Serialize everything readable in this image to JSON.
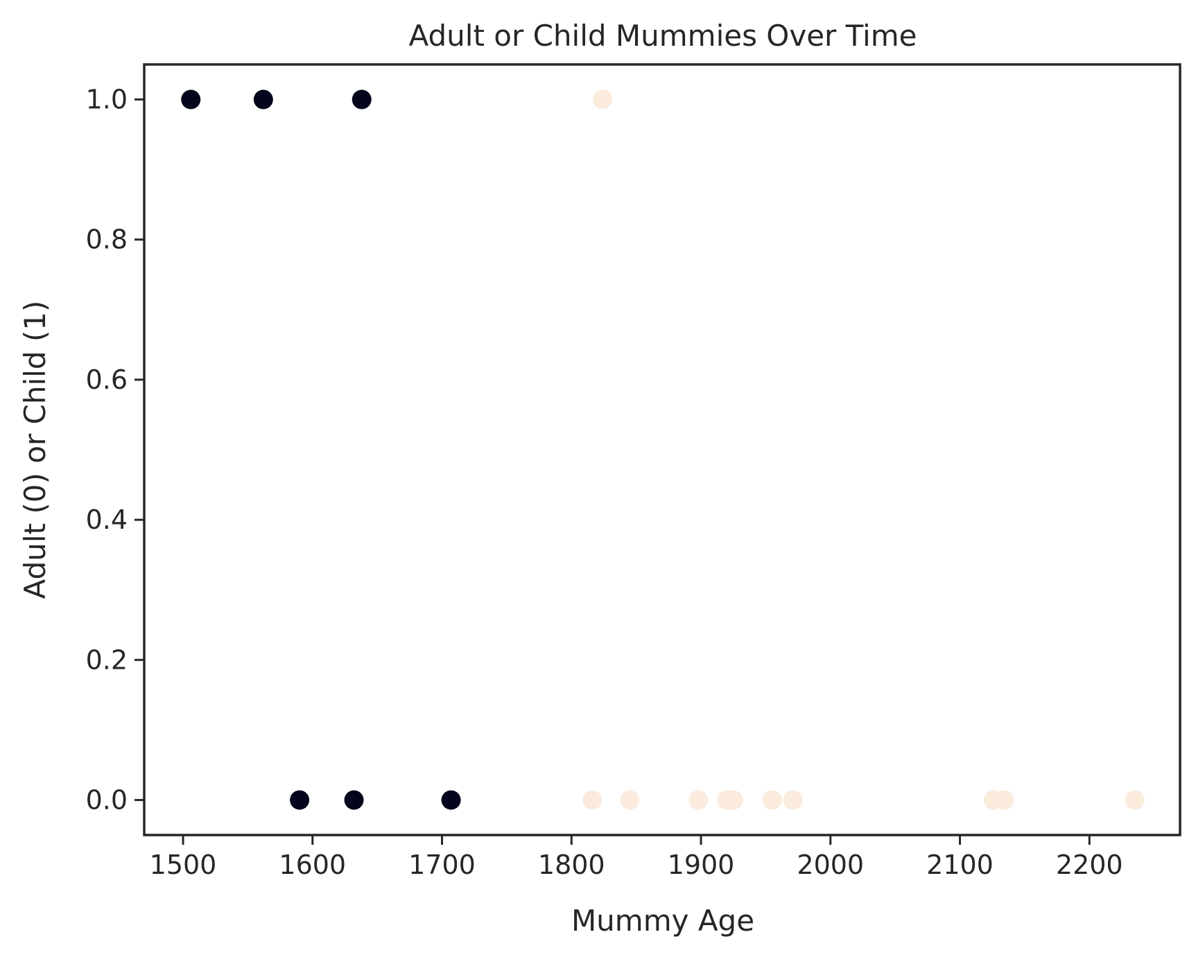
{
  "chart_data": {
    "type": "scatter",
    "title": "Adult or Child Mummies Over Time",
    "xlabel": "Mummy Age",
    "ylabel": "Adult (0) or Child (1)",
    "xlim": [
      1470,
      2270
    ],
    "ylim": [
      -0.05,
      1.05
    ],
    "xticks": [
      1500,
      1600,
      1700,
      1800,
      1900,
      2000,
      2100,
      2200
    ],
    "yticks": [
      0.0,
      0.2,
      0.4,
      0.6,
      0.8,
      1.0
    ],
    "xtick_labels": [
      "1500",
      "1600",
      "1700",
      "1800",
      "1900",
      "2000",
      "2100",
      "2200"
    ],
    "ytick_labels": [
      "0.0",
      "0.2",
      "0.4",
      "0.6",
      "0.8",
      "1.0"
    ],
    "grid": false,
    "series": [
      {
        "color": "#03051a",
        "points": [
          {
            "x": 1506,
            "y": 1
          },
          {
            "x": 1562,
            "y": 1
          },
          {
            "x": 1638,
            "y": 1
          },
          {
            "x": 1590,
            "y": 0
          },
          {
            "x": 1632,
            "y": 0
          },
          {
            "x": 1707,
            "y": 0
          }
        ]
      },
      {
        "color": "#faebdd",
        "points": [
          {
            "x": 1824,
            "y": 1
          },
          {
            "x": 1816,
            "y": 0
          },
          {
            "x": 1845,
            "y": 0
          },
          {
            "x": 1898,
            "y": 0
          },
          {
            "x": 1920,
            "y": 0
          },
          {
            "x": 1925,
            "y": 0
          },
          {
            "x": 1955,
            "y": 0
          },
          {
            "x": 1971,
            "y": 0
          },
          {
            "x": 2126,
            "y": 0
          },
          {
            "x": 2134,
            "y": 0
          },
          {
            "x": 2235,
            "y": 0
          }
        ]
      }
    ]
  }
}
